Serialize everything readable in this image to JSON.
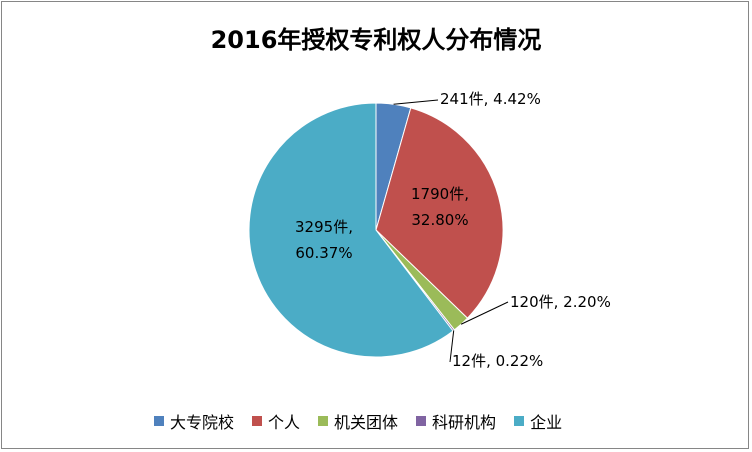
{
  "chart_data": {
    "type": "pie",
    "title": "2016年授权专利权人分布情况",
    "categories": [
      "大专院校",
      "个人",
      "机关团体",
      "科研机构",
      "企业"
    ],
    "values": [
      241,
      1790,
      120,
      12,
      3295
    ],
    "percentages": [
      4.42,
      32.8,
      2.2,
      0.22,
      60.37
    ],
    "colors": [
      "#4f81bd",
      "#c0504d",
      "#9bbb59",
      "#8064a2",
      "#4bacc6"
    ],
    "data_labels": {
      "line1": [
        "241件, 4.42%",
        "1790件,",
        "120件, 2.20%",
        "12件, 0.22%",
        "3295件,"
      ],
      "line2": [
        "",
        "32.80%",
        "",
        "",
        "60.37%"
      ]
    },
    "legend_position": "bottom"
  }
}
